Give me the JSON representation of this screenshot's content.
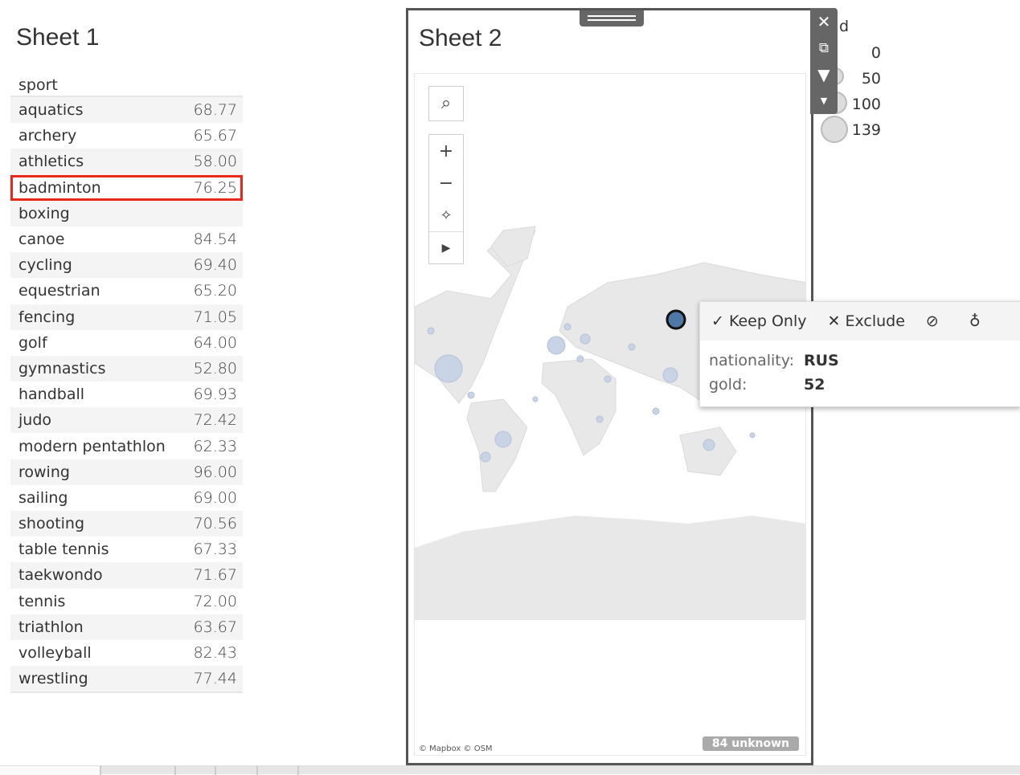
{
  "sheet1": {
    "title": "Sheet 1",
    "header": "sport",
    "rows": [
      {
        "sport": "aquatics",
        "value": "68.77"
      },
      {
        "sport": "archery",
        "value": "65.67"
      },
      {
        "sport": "athletics",
        "value": "58.00"
      },
      {
        "sport": "badminton",
        "value": "76.25",
        "selected": true
      },
      {
        "sport": "boxing",
        "value": ""
      },
      {
        "sport": "canoe",
        "value": "84.54"
      },
      {
        "sport": "cycling",
        "value": "69.40"
      },
      {
        "sport": "equestrian",
        "value": "65.20"
      },
      {
        "sport": "fencing",
        "value": "71.05"
      },
      {
        "sport": "golf",
        "value": "64.00"
      },
      {
        "sport": "gymnastics",
        "value": "52.80"
      },
      {
        "sport": "handball",
        "value": "69.93"
      },
      {
        "sport": "judo",
        "value": "72.42"
      },
      {
        "sport": "modern pentathlon",
        "value": "62.33"
      },
      {
        "sport": "rowing",
        "value": "96.00"
      },
      {
        "sport": "sailing",
        "value": "69.00"
      },
      {
        "sport": "shooting",
        "value": "70.56"
      },
      {
        "sport": "table tennis",
        "value": "67.33"
      },
      {
        "sport": "taekwondo",
        "value": "71.67"
      },
      {
        "sport": "tennis",
        "value": "72.00"
      },
      {
        "sport": "triathlon",
        "value": "63.67"
      },
      {
        "sport": "volleyball",
        "value": "82.43"
      },
      {
        "sport": "wrestling",
        "value": "77.44"
      }
    ]
  },
  "sheet2": {
    "title": "Sheet 2",
    "attribution": "© Mapbox © OSM",
    "unknown": "84 unknown",
    "selected_color": "#4e79a7"
  },
  "legend": {
    "title_fragment": "d",
    "items": [
      "0",
      "50",
      "100",
      "139"
    ]
  },
  "tooltip": {
    "keep_only": "Keep Only",
    "exclude": "Exclude",
    "fields": [
      {
        "label": "nationality:",
        "value": "RUS"
      },
      {
        "label": "gold:",
        "value": "52"
      }
    ]
  },
  "highlight_color": "#e8281b"
}
